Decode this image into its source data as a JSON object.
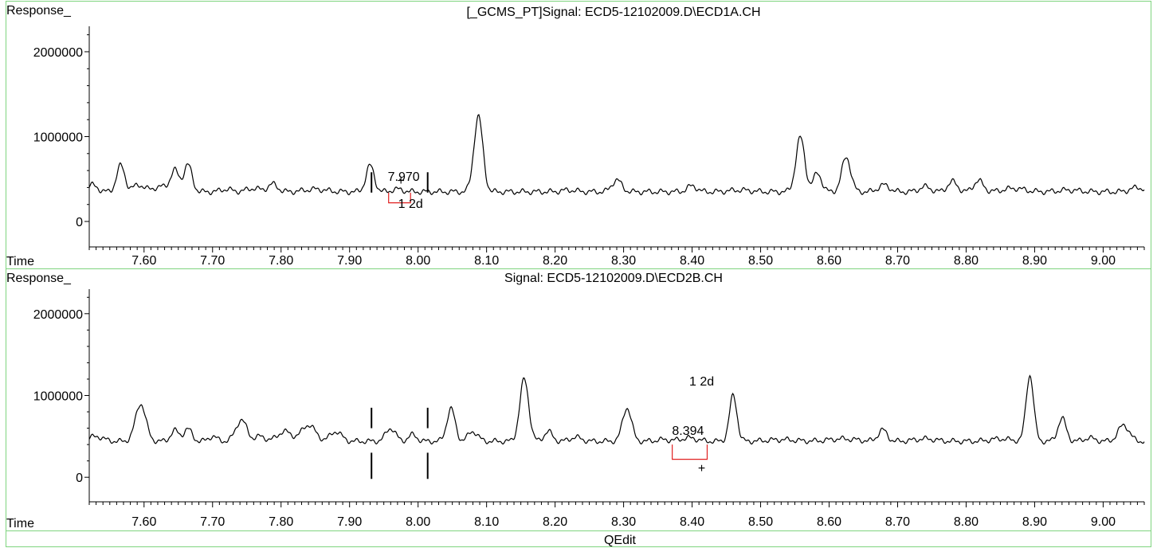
{
  "footer": {
    "label": "QEdit"
  },
  "chart_data": [
    {
      "type": "line",
      "title": "[_GCMS_PT]Signal: ECD5-12102009.D\\ECD1A.CH",
      "ylabel": "Response_",
      "xlabel": "Time",
      "xlim": [
        7.52,
        9.06
      ],
      "ylim": [
        -300000,
        2300000
      ],
      "x_ticks": [
        "7.60",
        "7.70",
        "7.80",
        "7.90",
        "8.00",
        "8.10",
        "8.20",
        "8.30",
        "8.40",
        "8.50",
        "8.60",
        "8.70",
        "8.80",
        "8.90",
        "9.00"
      ],
      "y_ticks": [
        "0",
        "1000000",
        "2000000"
      ],
      "baseline": 350000,
      "peaks": [
        [
          7.525,
          80000,
          0.007
        ],
        [
          7.566,
          310000,
          0.006
        ],
        [
          7.592,
          80000,
          0.008
        ],
        [
          7.625,
          60000,
          0.012
        ],
        [
          7.645,
          240000,
          0.006
        ],
        [
          7.664,
          320000,
          0.006
        ],
        [
          7.72,
          30000,
          0.008
        ],
        [
          7.76,
          40000,
          0.01
        ],
        [
          7.788,
          90000,
          0.007
        ],
        [
          7.85,
          30000,
          0.015
        ],
        [
          7.93,
          310000,
          0.006
        ],
        [
          7.97,
          30000,
          0.008
        ],
        [
          8.088,
          890000,
          0.0065
        ],
        [
          8.22,
          20000,
          0.01
        ],
        [
          8.29,
          140000,
          0.007
        ],
        [
          8.4,
          70000,
          0.007
        ],
        [
          8.47,
          20000,
          0.015
        ],
        [
          8.558,
          640000,
          0.0065
        ],
        [
          8.583,
          220000,
          0.006
        ],
        [
          8.625,
          410000,
          0.0065
        ],
        [
          8.68,
          80000,
          0.008
        ],
        [
          8.74,
          60000,
          0.008
        ],
        [
          8.78,
          120000,
          0.007
        ],
        [
          8.818,
          130000,
          0.007
        ],
        [
          8.87,
          40000,
          0.015
        ],
        [
          8.95,
          20000,
          0.015
        ],
        [
          9.05,
          50000,
          0.01
        ]
      ],
      "cut_markers": [
        7.932,
        8.014
      ],
      "annotations": [
        {
          "text": "7.970",
          "x": 7.979,
          "y": 480000
        },
        {
          "text": "1  2d",
          "x": 7.989,
          "y": 160000
        },
        {
          "text": "+",
          "x": 7.975,
          "y": 430000
        }
      ],
      "bracket": {
        "x1": 7.957,
        "x2": 7.989,
        "y_top": 340000,
        "y_bottom": 220000
      }
    },
    {
      "type": "line",
      "title": "Signal: ECD5-12102009.D\\ECD2B.CH",
      "ylabel": "Response_",
      "xlabel": "Time",
      "xlim": [
        7.52,
        9.06
      ],
      "ylim": [
        -300000,
        2300000
      ],
      "x_ticks": [
        "7.60",
        "7.70",
        "7.80",
        "7.90",
        "8.00",
        "8.10",
        "8.20",
        "8.30",
        "8.40",
        "8.50",
        "8.60",
        "8.70",
        "8.80",
        "8.90",
        "9.00"
      ],
      "y_ticks": [
        "0",
        "1000000",
        "2000000"
      ],
      "baseline": 440000,
      "peaks": [
        [
          7.53,
          60000,
          0.01
        ],
        [
          7.595,
          460000,
          0.0075
        ],
        [
          7.645,
          130000,
          0.006
        ],
        [
          7.664,
          150000,
          0.006
        ],
        [
          7.7,
          60000,
          0.006
        ],
        [
          7.742,
          260000,
          0.008
        ],
        [
          7.77,
          60000,
          0.007
        ],
        [
          7.805,
          120000,
          0.01
        ],
        [
          7.84,
          200000,
          0.01
        ],
        [
          7.88,
          120000,
          0.008
        ],
        [
          7.96,
          160000,
          0.007
        ],
        [
          7.992,
          80000,
          0.006
        ],
        [
          8.048,
          400000,
          0.006
        ],
        [
          8.08,
          120000,
          0.007
        ],
        [
          8.155,
          760000,
          0.0065
        ],
        [
          8.19,
          120000,
          0.006
        ],
        [
          8.23,
          50000,
          0.008
        ],
        [
          8.305,
          410000,
          0.0065
        ],
        [
          8.358,
          20000,
          0.01
        ],
        [
          8.395,
          40000,
          0.012
        ],
        [
          8.46,
          560000,
          0.0055
        ],
        [
          8.53,
          20000,
          0.02
        ],
        [
          8.62,
          30000,
          0.02
        ],
        [
          8.678,
          140000,
          0.0065
        ],
        [
          8.74,
          30000,
          0.015
        ],
        [
          8.85,
          30000,
          0.015
        ],
        [
          8.893,
          810000,
          0.0055
        ],
        [
          8.94,
          280000,
          0.006
        ],
        [
          8.98,
          40000,
          0.008
        ],
        [
          9.03,
          200000,
          0.008
        ]
      ],
      "cut_markers": [
        7.932,
        8.014
      ],
      "annotations": [
        {
          "text": "8.394",
          "x": 8.394,
          "y": 520000
        },
        {
          "text": "1  2d",
          "x": 8.414,
          "y": 1120000
        },
        {
          "text": "+",
          "x": 8.414,
          "y": 60000
        }
      ],
      "bracket": {
        "x1": 8.371,
        "x2": 8.422,
        "y_top": 400000,
        "y_bottom": 220000
      }
    }
  ]
}
